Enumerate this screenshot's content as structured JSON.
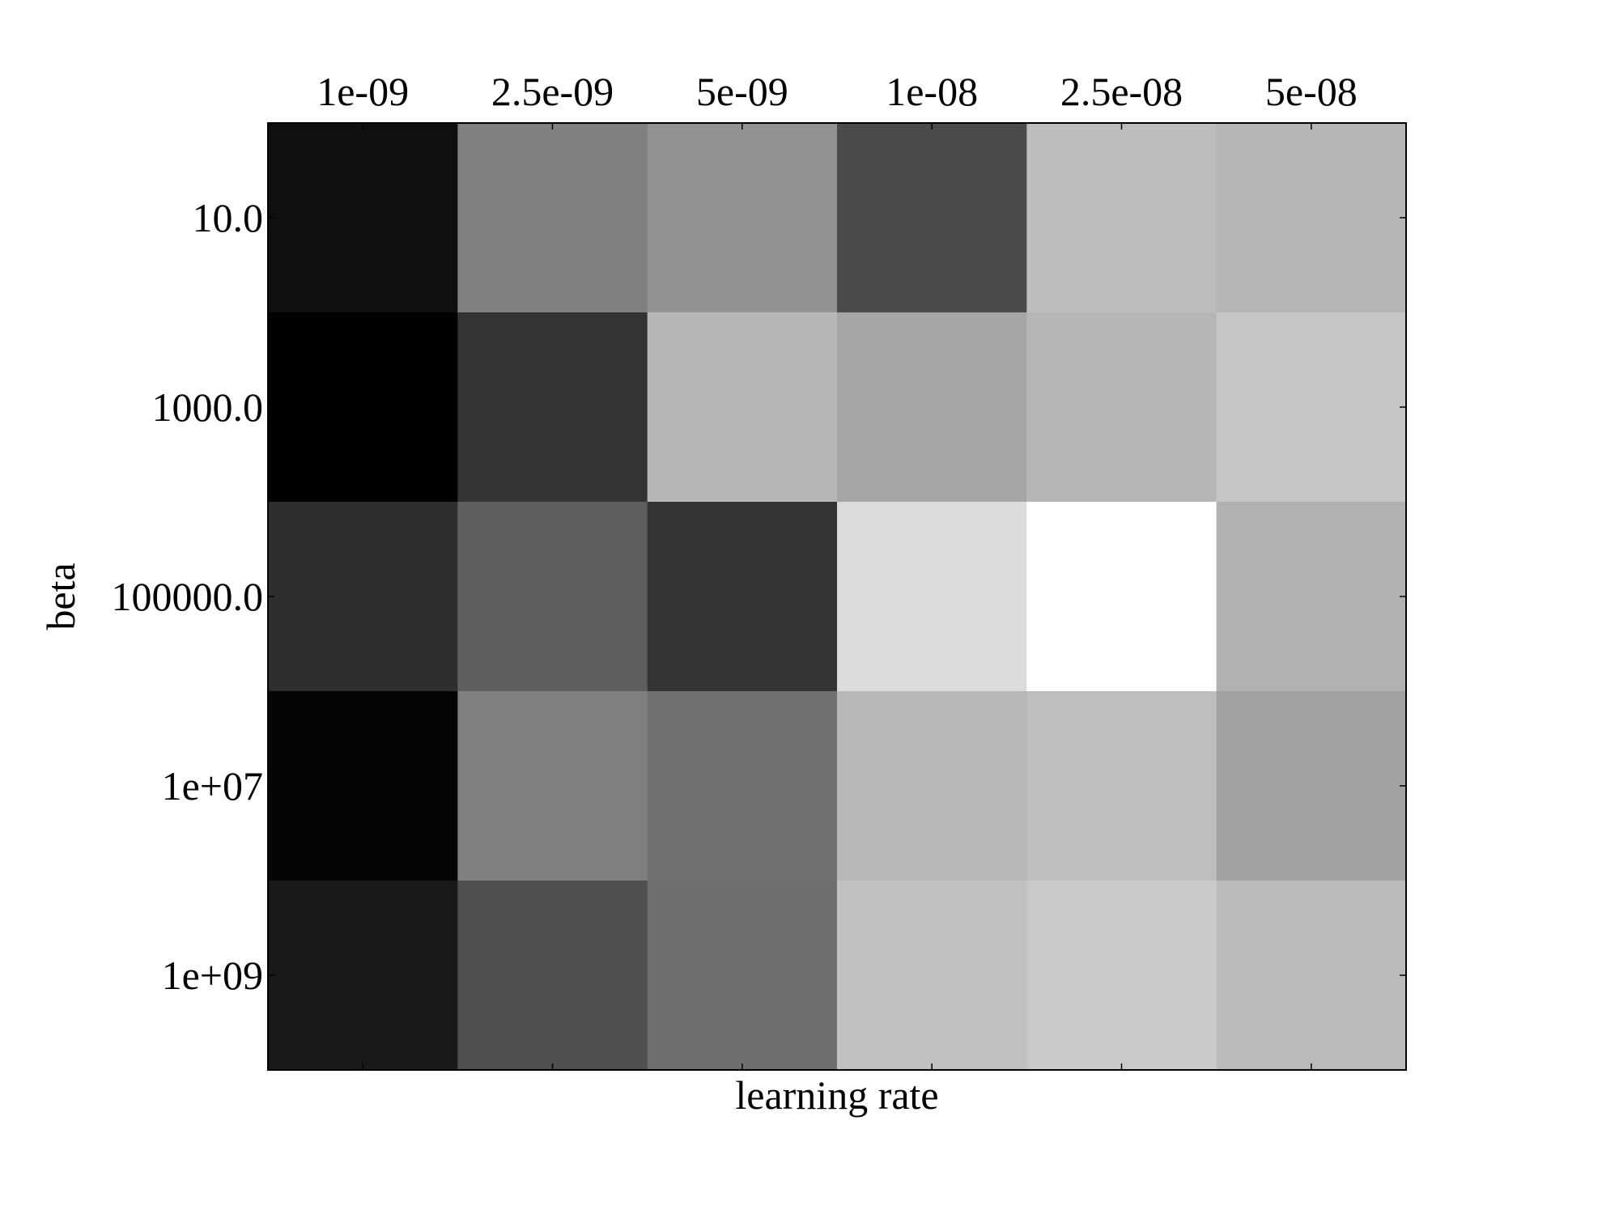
{
  "chart_data": {
    "type": "heatmap",
    "colormap": "gray",
    "xlabel": "learning rate",
    "ylabel": "beta",
    "x_tick_position": "top",
    "x_categories": [
      "1e-09",
      "2.5e-09",
      "5e-09",
      "1e-08",
      "2.5e-08",
      "5e-08"
    ],
    "y_categories": [
      "10.0",
      "1000.0",
      "100000.0",
      "1e+07",
      "1e+09"
    ],
    "cell_colors": [
      [
        "#0f0f0f",
        "#808080",
        "#939393",
        "#4b4b4b",
        "#bdbdbd",
        "#b6b6b6"
      ],
      [
        "#000000",
        "#333333",
        "#b7b7b7",
        "#a6a6a6",
        "#b5b5b5",
        "#c6c6c6"
      ],
      [
        "#2e2e2e",
        "#5e5e5e",
        "#343434",
        "#dbdbdb",
        "#ffffff",
        "#b1b1b1"
      ],
      [
        "#050505",
        "#7f7f7f",
        "#707070",
        "#b9b9b9",
        "#bebebe",
        "#a2a2a2"
      ],
      [
        "#191919",
        "#4f4f4f",
        "#6f6f6f",
        "#c1c1c1",
        "#c9c9c9",
        "#bababa"
      ]
    ],
    "grid": false,
    "colorbar": false
  }
}
